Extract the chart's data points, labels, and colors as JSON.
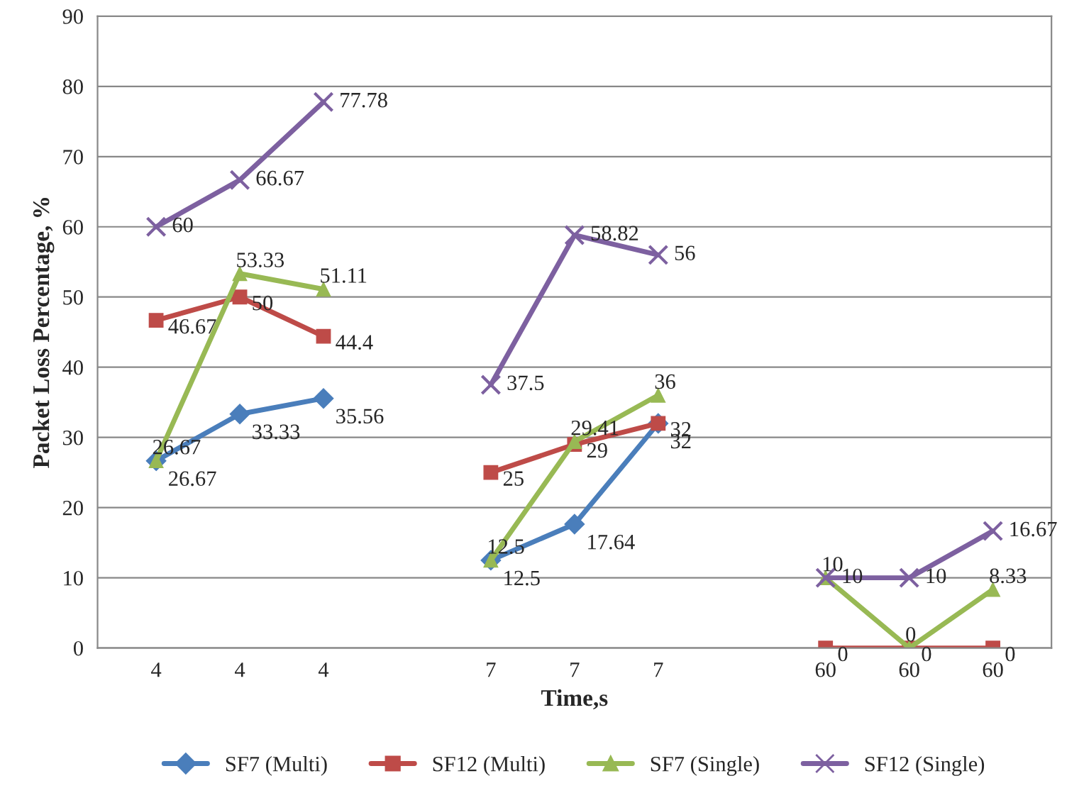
{
  "chart_data": {
    "type": "line",
    "xlabel": "Time,s",
    "ylabel": "Packet Loss Percentage, %",
    "categories": [
      "4",
      "4",
      "4",
      null,
      "7",
      "7",
      "7",
      null,
      "60",
      "60",
      "60"
    ],
    "ylim": [
      0,
      90
    ],
    "yticks": [
      0,
      10,
      20,
      30,
      40,
      50,
      60,
      70,
      80,
      90
    ],
    "grid": "y",
    "legend": "bottom",
    "line_style": "solid",
    "series": [
      {
        "name": "SF7 (Multi)",
        "color": "#4a7ebb",
        "marker": "diamond",
        "values": [
          26.67,
          33.33,
          35.56,
          null,
          12.5,
          17.64,
          32,
          null,
          null,
          null,
          null
        ],
        "value_labels": [
          "26.67",
          "33.33",
          "35.56",
          null,
          "12.5",
          "17.64",
          "32",
          null,
          null,
          null,
          null
        ]
      },
      {
        "name": "SF12 (Multi)",
        "color": "#be4b48",
        "marker": "square",
        "values": [
          46.67,
          50,
          44.4,
          null,
          25,
          29,
          32,
          null,
          0,
          0,
          0
        ],
        "value_labels": [
          "46.67",
          "50",
          "44.4",
          null,
          "25",
          "29",
          "32",
          null,
          "0",
          "0",
          "0"
        ]
      },
      {
        "name": "SF7 (Single)",
        "color": "#98b954",
        "marker": "triangle",
        "values": [
          26.67,
          53.33,
          51.11,
          null,
          12.5,
          29.41,
          36,
          null,
          10,
          0,
          8.33
        ],
        "value_labels": [
          "26.67",
          "53.33",
          "51.11",
          null,
          "12.5",
          "29.41",
          "36",
          null,
          "10",
          "0",
          "8.33"
        ]
      },
      {
        "name": "SF12 (Single)",
        "color": "#7d60a0",
        "marker": "cross",
        "values": [
          60,
          66.67,
          77.78,
          null,
          37.5,
          58.82,
          56,
          null,
          10,
          10,
          16.67
        ],
        "value_labels": [
          "60",
          "66.67",
          "77.78",
          null,
          "37.5",
          "58.82",
          "56",
          null,
          "10",
          "10",
          "16.67"
        ]
      }
    ]
  }
}
